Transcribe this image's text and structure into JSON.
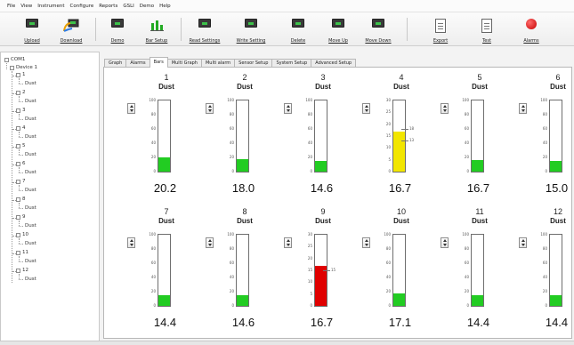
{
  "menu": [
    "File",
    "View",
    "Instrument",
    "Configure",
    "Reports",
    "GSLI",
    "Demo",
    "Help"
  ],
  "toolbar": {
    "buttons": [
      {
        "label": "Upload",
        "icon": "monitor-icon"
      },
      {
        "label": "Download",
        "icon": "transfer-icon"
      },
      {
        "label": "Demo",
        "icon": "monitor-icon"
      },
      {
        "label": "Bar Setup",
        "icon": "bar-chart-icon"
      },
      {
        "label": "Read Settings",
        "icon": "monitor-icon"
      },
      {
        "label": "Write Setting",
        "icon": "monitor-icon"
      },
      {
        "label": "Delete",
        "icon": "monitor-icon"
      },
      {
        "label": "Move Up",
        "icon": "monitor-icon"
      },
      {
        "label": "Move Down",
        "icon": "monitor-icon"
      },
      {
        "label": "Export",
        "icon": "document-icon"
      },
      {
        "label": "Test",
        "icon": "document-icon"
      },
      {
        "label": "Alarms",
        "icon": "alarm-icon"
      }
    ]
  },
  "tree": {
    "root": "COM1",
    "device": "Device 1",
    "channels": [
      {
        "num": "1",
        "type": "Dust"
      },
      {
        "num": "2",
        "type": "Dust"
      },
      {
        "num": "3",
        "type": "Dust"
      },
      {
        "num": "4",
        "type": "Dust"
      },
      {
        "num": "5",
        "type": "Dust"
      },
      {
        "num": "6",
        "type": "Dust"
      },
      {
        "num": "7",
        "type": "Dust"
      },
      {
        "num": "8",
        "type": "Dust"
      },
      {
        "num": "9",
        "type": "Dust"
      },
      {
        "num": "10",
        "type": "Dust"
      },
      {
        "num": "11",
        "type": "Dust"
      },
      {
        "num": "12",
        "type": "Dust"
      }
    ]
  },
  "tabs": [
    "Graph",
    "Alarms",
    "Bars",
    "Multi Graph",
    "Multi alarm",
    "Sensor Setup",
    "System Setup",
    "Advanced Setup"
  ],
  "active_tab": "Bars",
  "gauges": [
    {
      "num": "1",
      "name": "Dust",
      "value": "20.2",
      "scale_max": 100,
      "level": 20.2,
      "color": "#22cc22",
      "ticks": [
        "100",
        "80",
        "60",
        "40",
        "20",
        "0"
      ]
    },
    {
      "num": "2",
      "name": "Dust",
      "value": "18.0",
      "scale_max": 100,
      "level": 18.0,
      "color": "#22cc22",
      "ticks": [
        "100",
        "80",
        "60",
        "40",
        "20",
        "0"
      ]
    },
    {
      "num": "3",
      "name": "Dust",
      "value": "14.6",
      "scale_max": 100,
      "level": 14.6,
      "color": "#22cc22",
      "ticks": [
        "100",
        "80",
        "60",
        "40",
        "20",
        "0"
      ]
    },
    {
      "num": "4",
      "name": "Dust",
      "value": "16.7",
      "scale_max": 30,
      "level": 16.7,
      "color": "#f2e600",
      "ticks": [
        "30",
        "25",
        "20",
        "15",
        "10",
        "5",
        "0"
      ],
      "markers": [
        {
          "level": 18,
          "text": "18"
        },
        {
          "level": 13,
          "text": "13"
        }
      ]
    },
    {
      "num": "5",
      "name": "Dust",
      "value": "16.7",
      "scale_max": 100,
      "level": 16.7,
      "color": "#22cc22",
      "ticks": [
        "100",
        "80",
        "60",
        "40",
        "20",
        "0"
      ]
    },
    {
      "num": "6",
      "name": "Dust",
      "value": "15.0",
      "scale_max": 100,
      "level": 15.0,
      "color": "#22cc22",
      "ticks": [
        "100",
        "80",
        "60",
        "40",
        "20",
        "0"
      ]
    },
    {
      "num": "7",
      "name": "Dust",
      "value": "14.4",
      "scale_max": 100,
      "level": 14.4,
      "color": "#22cc22",
      "ticks": [
        "100",
        "80",
        "60",
        "40",
        "20",
        "0"
      ]
    },
    {
      "num": "8",
      "name": "Dust",
      "value": "14.6",
      "scale_max": 100,
      "level": 14.6,
      "color": "#22cc22",
      "ticks": [
        "100",
        "80",
        "60",
        "40",
        "20",
        "0"
      ]
    },
    {
      "num": "9",
      "name": "Dust",
      "value": "16.7",
      "scale_max": 30,
      "level": 16.7,
      "color": "#e00000",
      "ticks": [
        "30",
        "25",
        "20",
        "15",
        "10",
        "5",
        "0"
      ],
      "markers": [
        {
          "level": 15,
          "text": "15"
        }
      ]
    },
    {
      "num": "10",
      "name": "Dust",
      "value": "17.1",
      "scale_max": 100,
      "level": 17.1,
      "color": "#22cc22",
      "ticks": [
        "100",
        "80",
        "60",
        "40",
        "20",
        "0"
      ]
    },
    {
      "num": "11",
      "name": "Dust",
      "value": "14.4",
      "scale_max": 100,
      "level": 14.4,
      "color": "#22cc22",
      "ticks": [
        "100",
        "80",
        "60",
        "40",
        "20",
        "0"
      ]
    },
    {
      "num": "12",
      "name": "Dust",
      "value": "14.4",
      "scale_max": 100,
      "level": 14.4,
      "color": "#22cc22",
      "ticks": [
        "100",
        "80",
        "60",
        "40",
        "20",
        "0"
      ]
    }
  ]
}
